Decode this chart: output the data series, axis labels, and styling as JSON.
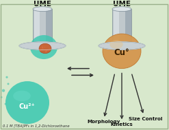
{
  "bg_color": "#d8e8cc",
  "border_color": "#9ab08a",
  "title_ume1": "UME",
  "title_ume2": "UME",
  "label_cu2plus": "Cu²⁺",
  "label_cu0": "Cu°",
  "label_morphology": "Morphology",
  "label_kinetics": "Kinetics",
  "label_size_control": "Size Control",
  "footer_text": "0.1 M [TBA]PF₆ in 1,2-Dichloroethane",
  "cyl_body_color": "#c0c8cc",
  "cyl_highlight": "#dde4e8",
  "cyl_shadow": "#8898a4",
  "cyl_edge": "#7a8a94",
  "disk_face": "#c8d0d4",
  "disk_edge": "#7a8a94",
  "ball_teal_color": "#38c8b0",
  "ball_orange_color": "#d49850",
  "nano_color": "#c86030",
  "nano_edge": "#a04020",
  "arrow_color": "#303030",
  "text_color": "#101010",
  "small_dot_color": "#50c8b0",
  "cu0_text_color": "#3a2000"
}
